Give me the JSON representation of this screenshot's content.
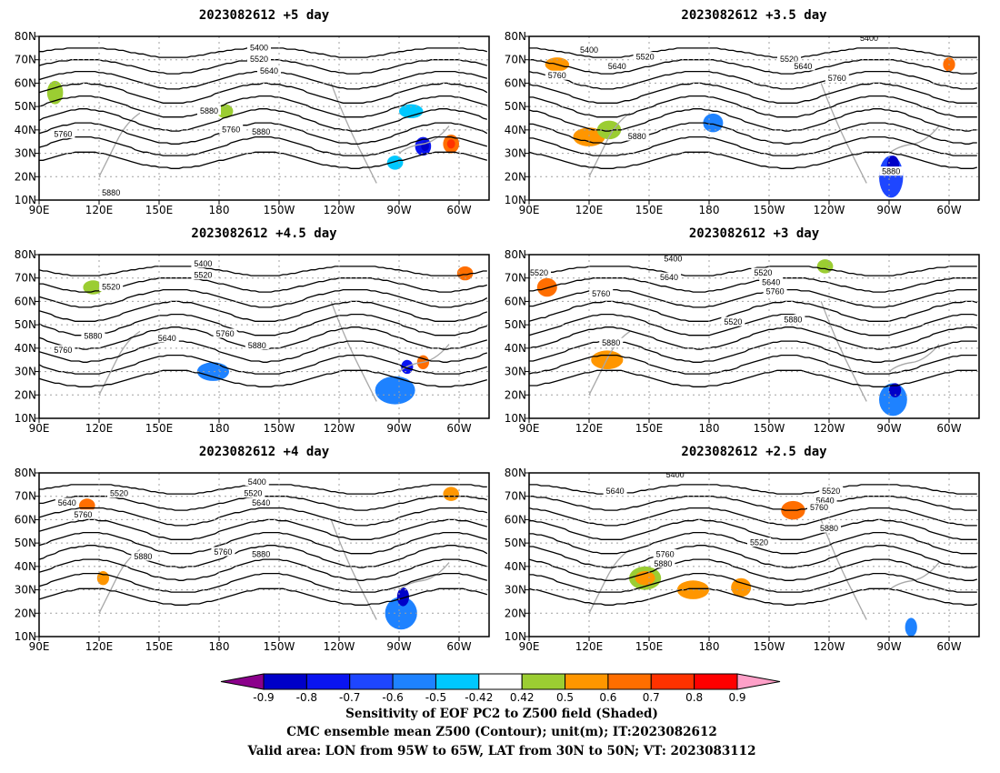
{
  "chart_data": {
    "type": "contour_map_panels",
    "panels": [
      {
        "title": "2023082612 +5 day"
      },
      {
        "title": "2023082612 +3.5 day"
      },
      {
        "title": "2023082612 +4.5 day"
      },
      {
        "title": "2023082612 +3 day"
      },
      {
        "title": "2023082612 +4 day"
      },
      {
        "title": "2023082612 +2.5 day"
      }
    ],
    "x_ticks": [
      "90E",
      "120E",
      "150E",
      "180",
      "150W",
      "120W",
      "90W",
      "60W"
    ],
    "y_ticks": [
      "10N",
      "20N",
      "30N",
      "40N",
      "50N",
      "60N",
      "70N",
      "80N"
    ],
    "contour_levels": [
      "5400",
      "5520",
      "5640",
      "5760",
      "5880"
    ],
    "contour_labels": [
      [
        {
          "t": "5400",
          "lon": 200,
          "lat": 75
        },
        {
          "t": "5520",
          "lon": 200,
          "lat": 70
        },
        {
          "t": "5640",
          "lon": 205,
          "lat": 65
        },
        {
          "t": "5880",
          "lon": 175,
          "lat": 48
        },
        {
          "t": "5760",
          "lon": 186,
          "lat": 40
        },
        {
          "t": "5880",
          "lon": 201,
          "lat": 39
        },
        {
          "t": "5760",
          "lon": 102,
          "lat": 38
        },
        {
          "t": "5880",
          "lon": 126,
          "lat": 13
        }
      ],
      [
        {
          "t": "5400",
          "lon": 260,
          "lat": 79
        },
        {
          "t": "5400",
          "lon": 120,
          "lat": 74
        },
        {
          "t": "5520",
          "lon": 148,
          "lat": 71
        },
        {
          "t": "5640",
          "lon": 134,
          "lat": 67
        },
        {
          "t": "5760",
          "lon": 104,
          "lat": 63
        },
        {
          "t": "5520",
          "lon": 220,
          "lat": 70
        },
        {
          "t": "5640",
          "lon": 227,
          "lat": 67
        },
        {
          "t": "5760",
          "lon": 244,
          "lat": 62
        },
        {
          "t": "5880",
          "lon": 144,
          "lat": 37
        },
        {
          "t": "5880",
          "lon": 271,
          "lat": 22
        }
      ],
      [
        {
          "t": "5400",
          "lon": 172,
          "lat": 76
        },
        {
          "t": "5520",
          "lon": 172,
          "lat": 71
        },
        {
          "t": "5520",
          "lon": 126,
          "lat": 66
        },
        {
          "t": "5640",
          "lon": 154,
          "lat": 44
        },
        {
          "t": "5880",
          "lon": 117,
          "lat": 45
        },
        {
          "t": "5760",
          "lon": 102,
          "lat": 39
        },
        {
          "t": "5760",
          "lon": 183,
          "lat": 46
        },
        {
          "t": "5880",
          "lon": 199,
          "lat": 41
        }
      ],
      [
        {
          "t": "5400",
          "lon": 162,
          "lat": 78
        },
        {
          "t": "5640",
          "lon": 160,
          "lat": 70
        },
        {
          "t": "5520",
          "lon": 207,
          "lat": 72
        },
        {
          "t": "5640",
          "lon": 211,
          "lat": 68
        },
        {
          "t": "5760",
          "lon": 213,
          "lat": 64
        },
        {
          "t": "5760",
          "lon": 126,
          "lat": 63
        },
        {
          "t": "5520",
          "lon": 192,
          "lat": 51
        },
        {
          "t": "5880",
          "lon": 222,
          "lat": 52
        },
        {
          "t": "5520",
          "lon": 95,
          "lat": 72
        },
        {
          "t": "5880",
          "lon": 131,
          "lat": 42
        }
      ],
      [
        {
          "t": "5400",
          "lon": 199,
          "lat": 76
        },
        {
          "t": "5520",
          "lon": 197,
          "lat": 71
        },
        {
          "t": "5640",
          "lon": 201,
          "lat": 67
        },
        {
          "t": "5520",
          "lon": 130,
          "lat": 71
        },
        {
          "t": "5640",
          "lon": 104,
          "lat": 67
        },
        {
          "t": "5760",
          "lon": 112,
          "lat": 62
        },
        {
          "t": "5880",
          "lon": 142,
          "lat": 44
        },
        {
          "t": "5760",
          "lon": 182,
          "lat": 46
        },
        {
          "t": "5880",
          "lon": 201,
          "lat": 45
        }
      ],
      [
        {
          "t": "5400",
          "lon": 163,
          "lat": 79
        },
        {
          "t": "5640",
          "lon": 133,
          "lat": 72
        },
        {
          "t": "5520",
          "lon": 241,
          "lat": 72
        },
        {
          "t": "5640",
          "lon": 238,
          "lat": 68
        },
        {
          "t": "5760",
          "lon": 235,
          "lat": 65
        },
        {
          "t": "5880",
          "lon": 240,
          "lat": 56
        },
        {
          "t": "5520",
          "lon": 205,
          "lat": 50
        },
        {
          "t": "5760",
          "lon": 158,
          "lat": 45
        },
        {
          "t": "5880",
          "lon": 157,
          "lat": 41
        }
      ]
    ],
    "colorbar": {
      "ticks": [
        "-0.9",
        "-0.8",
        "-0.7",
        "-0.6",
        "-0.5",
        "-0.42",
        "0.42",
        "0.5",
        "0.6",
        "0.7",
        "0.8",
        "0.9"
      ],
      "colors": [
        "#8b008b",
        "#0000c8",
        "#0a14f0",
        "#1e46ff",
        "#1e82ff",
        "#00c8ff",
        "#ffffff",
        "#9bcd32",
        "#ff9600",
        "#ff6e00",
        "#ff3200",
        "#ff0000",
        "#ffa0c8"
      ]
    },
    "captions": [
      "Sensitivity of EOF PC2 to Z500 field (Shaded)",
      "CMC ensemble mean Z500 (Contour); unit(m); IT:2023082612",
      "Valid area: LON from 95W to 65W, LAT from 30N to 50N; VT: 2023083112"
    ]
  }
}
